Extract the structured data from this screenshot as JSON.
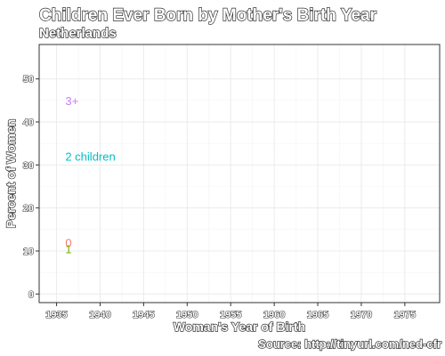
{
  "chart_data": {
    "type": "line",
    "title": "Children Ever Born by Mother's Birth Year",
    "subtitle": "Netherlands",
    "xlabel": "Woman's Year of Birth",
    "ylabel": "Percent of Women",
    "caption": "Source: http://tinyurl.com/ned-cfr",
    "xlim": [
      1933,
      1979
    ],
    "ylim": [
      -2,
      58
    ],
    "x_ticks": [
      1935,
      1940,
      1945,
      1950,
      1955,
      1960,
      1965,
      1970,
      1975
    ],
    "x_tick_labels": [
      "1935",
      "1940",
      "1945",
      "1950",
      "1955",
      "1960",
      "1965",
      "1970",
      "1975"
    ],
    "y_ticks": [
      0,
      10,
      20,
      30,
      40,
      50
    ],
    "y_tick_labels": [
      "0",
      "10",
      "20",
      "30",
      "40",
      "50"
    ],
    "grid": true,
    "legend": "none",
    "series": [
      {
        "name": "3+",
        "x": [
          1936
        ],
        "y": [
          45
        ],
        "color": "#c77cff"
      },
      {
        "name": "2 children",
        "x": [
          1936
        ],
        "y": [
          32
        ],
        "color": "#00bfc4"
      },
      {
        "name": "0",
        "x": [
          1936
        ],
        "y": [
          12
        ],
        "color": "#f8766d"
      },
      {
        "name": "1",
        "x": [
          1936
        ],
        "y": [
          10.5
        ],
        "color": "#7cae00"
      }
    ]
  }
}
